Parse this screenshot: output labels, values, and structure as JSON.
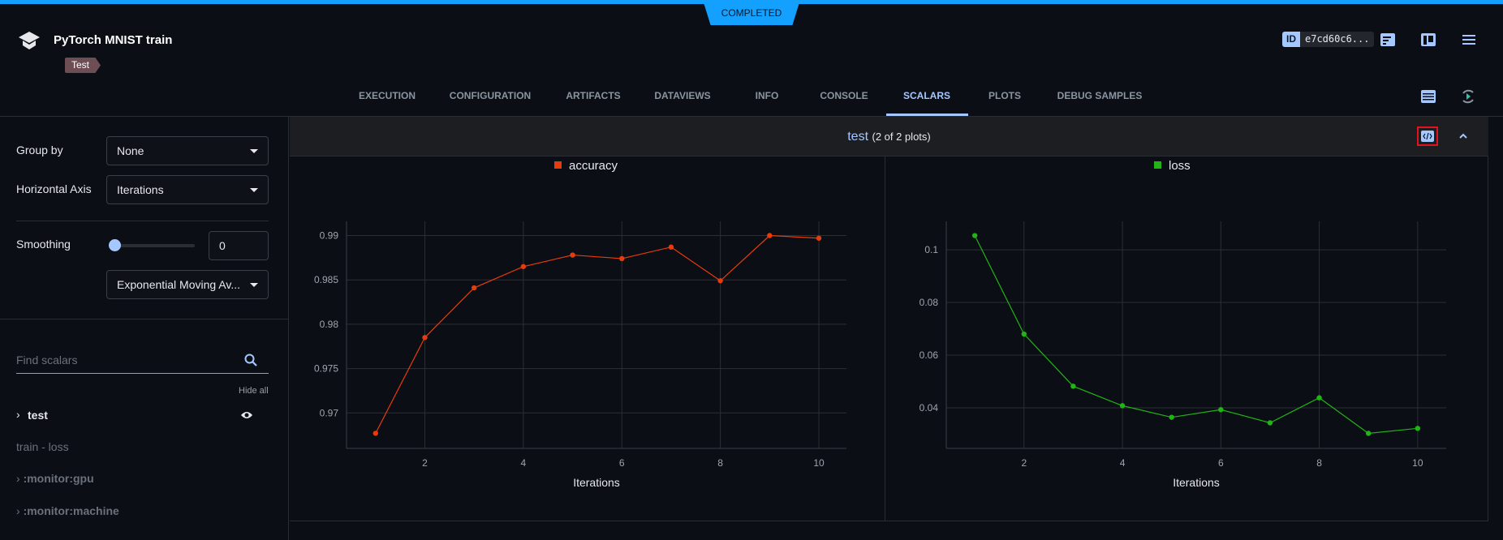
{
  "header": {
    "status": "COMPLETED",
    "title": "PyTorch MNIST train",
    "tag": "Test",
    "id_label": "ID",
    "id_value": "e7cd60c6..."
  },
  "tabs": [
    {
      "label": "EXECUTION"
    },
    {
      "label": "CONFIGURATION"
    },
    {
      "label": "ARTIFACTS"
    },
    {
      "label": "DATAVIEWS"
    },
    {
      "label": "INFO"
    },
    {
      "label": "CONSOLE"
    },
    {
      "label": "SCALARS",
      "active": true
    },
    {
      "label": "PLOTS"
    },
    {
      "label": "DEBUG SAMPLES"
    }
  ],
  "sidebar": {
    "group_by_label": "Group by",
    "group_by_value": "None",
    "haxis_label": "Horizontal Axis",
    "haxis_value": "Iterations",
    "smoothing_label": "Smoothing",
    "smoothing_value": "0",
    "smoothing_fraction": 0,
    "smoothing_method": "Exponential Moving Av...",
    "search_placeholder": "Find scalars",
    "hide_all": "Hide all",
    "items": [
      {
        "label": "test",
        "expandable": true,
        "visible": true
      },
      {
        "label": "train - loss"
      },
      {
        "label": ":monitor:gpu",
        "expandable": true
      },
      {
        "label": ":monitor:machine",
        "expandable": true
      }
    ]
  },
  "group": {
    "name": "test",
    "count": "(2 of 2 plots)"
  },
  "colors": {
    "accent": "#a4c8ff",
    "status": "#14a0ff",
    "accuracy": "#e63c0c",
    "loss": "#20b515"
  },
  "chart_data": [
    {
      "type": "line",
      "title": "",
      "legend": "accuracy",
      "xlabel": "Iterations",
      "ylabel": "",
      "grid": true,
      "legend_position": "top-center",
      "x": [
        1,
        2,
        3,
        4,
        5,
        6,
        7,
        8,
        9,
        10
      ],
      "series": [
        {
          "name": "accuracy",
          "values": [
            0.9677,
            0.9785,
            0.9841,
            0.9865,
            0.9878,
            0.9874,
            0.9887,
            0.9849,
            0.99,
            0.9897
          ]
        }
      ],
      "xlim": [
        0.41,
        10.56
      ],
      "ylim": [
        0.966,
        0.9916
      ],
      "xticks": [
        2,
        4,
        6,
        8,
        10
      ],
      "yticks": [
        0.97,
        0.975,
        0.98,
        0.985,
        0.99
      ],
      "xtick_labels": [
        "2",
        "4",
        "6",
        "8",
        "10"
      ],
      "ytick_labels": [
        "0.97",
        "0.975",
        "0.98",
        "0.985",
        "0.99"
      ]
    },
    {
      "type": "line",
      "title": "",
      "legend": "loss",
      "xlabel": "Iterations",
      "ylabel": "",
      "grid": true,
      "legend_position": "top-center",
      "x": [
        1,
        2,
        3,
        4,
        5,
        6,
        7,
        8,
        9,
        10
      ],
      "series": [
        {
          "name": "loss",
          "values": [
            0.1054,
            0.068,
            0.0482,
            0.0408,
            0.0364,
            0.0393,
            0.0343,
            0.0438,
            0.0303,
            0.0322
          ]
        }
      ],
      "xlim": [
        0.42,
        10.58
      ],
      "ylim": [
        0.0246,
        0.1108
      ],
      "xticks": [
        2,
        4,
        6,
        8,
        10
      ],
      "yticks": [
        0.04,
        0.06,
        0.08,
        0.1
      ],
      "xtick_labels": [
        "2",
        "4",
        "6",
        "8",
        "10"
      ],
      "ytick_labels": [
        "0.04",
        "0.06",
        "0.08",
        "0.1"
      ]
    }
  ]
}
